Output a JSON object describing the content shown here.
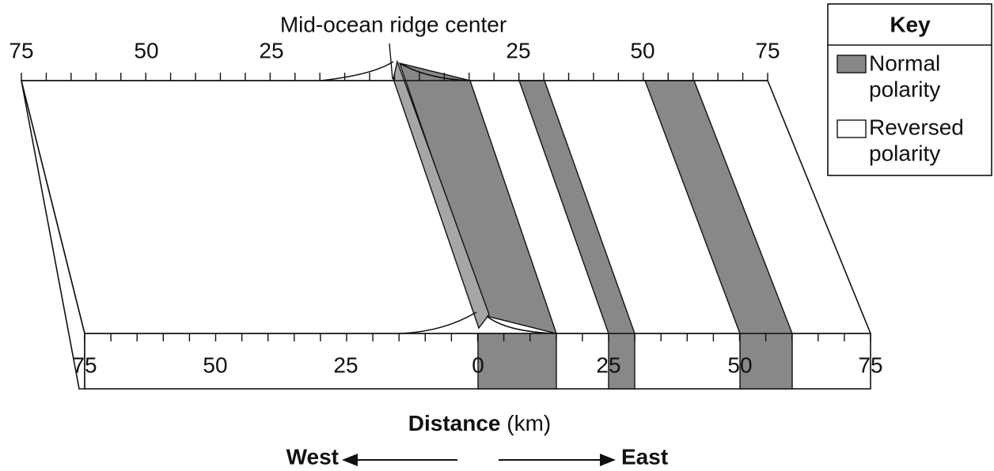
{
  "title": "Mid-ocean ridge center",
  "top_scale": {
    "labels": [
      "75",
      "50",
      "25",
      "25",
      "50",
      "75"
    ]
  },
  "bottom_scale": {
    "labels": [
      "75",
      "50",
      "25",
      "0",
      "25",
      "50",
      "75"
    ]
  },
  "axis_title": {
    "main": "Distance",
    "unit": "(km)"
  },
  "directions": {
    "west": "West",
    "east": "East"
  },
  "key": {
    "title": "Key",
    "items": [
      {
        "lines": [
          "Normal",
          "polarity"
        ]
      },
      {
        "lines": [
          "Reversed",
          "polarity"
        ]
      }
    ]
  }
}
